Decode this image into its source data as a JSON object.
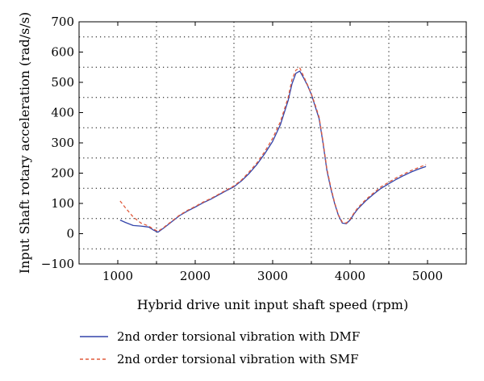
{
  "chart_data": {
    "type": "line",
    "xlabel": "Hybrid drive unit input shaft speed (rpm)",
    "ylabel": "Input Shaft rotary acceleration (rad/s/s)",
    "xlim": [
      500,
      5500
    ],
    "ylim": [
      -100,
      700
    ],
    "xticks": [
      1000,
      2000,
      3000,
      4000,
      5000
    ],
    "yticks": [
      -100,
      0,
      100,
      200,
      300,
      400,
      500,
      600,
      700
    ],
    "grid": true,
    "legend_position": "bottom",
    "series": [
      {
        "name": "2nd order torsional vibration with DMF",
        "color": "#3344aa",
        "style": "solid",
        "x": [
          1030,
          1100,
          1200,
          1300,
          1400,
          1460,
          1520,
          1600,
          1700,
          1800,
          1900,
          2000,
          2100,
          2200,
          2300,
          2400,
          2500,
          2600,
          2700,
          2800,
          2900,
          3000,
          3100,
          3200,
          3250,
          3300,
          3350,
          3400,
          3450,
          3500,
          3550,
          3600,
          3650,
          3700,
          3750,
          3800,
          3850,
          3900,
          3950,
          4000,
          4050,
          4100,
          4200,
          4300,
          4400,
          4500,
          4600,
          4700,
          4800,
          4900,
          4980
        ],
        "y": [
          45,
          37,
          27,
          25,
          22,
          12,
          5,
          20,
          40,
          60,
          75,
          88,
          102,
          114,
          128,
          142,
          155,
          175,
          200,
          230,
          265,
          305,
          360,
          440,
          495,
          530,
          537,
          515,
          490,
          460,
          420,
          380,
          300,
          210,
          150,
          100,
          60,
          35,
          33,
          45,
          65,
          82,
          108,
          130,
          150,
          165,
          180,
          193,
          205,
          215,
          222
        ]
      },
      {
        "name": "2nd order torsional vibration with SMF",
        "color": "#e05a3c",
        "style": "dashed",
        "x": [
          1030,
          1100,
          1200,
          1300,
          1400,
          1460,
          1520,
          1600,
          1700,
          1800,
          1900,
          2000,
          2100,
          2200,
          2300,
          2400,
          2500,
          2600,
          2700,
          2800,
          2900,
          3000,
          3100,
          3200,
          3250,
          3300,
          3350,
          3400,
          3450,
          3500,
          3550,
          3600,
          3650,
          3700,
          3750,
          3800,
          3850,
          3900,
          3950,
          4000,
          4050,
          4100,
          4200,
          4300,
          4400,
          4500,
          4600,
          4700,
          4800,
          4900,
          4980
        ],
        "y": [
          108,
          85,
          55,
          35,
          25,
          15,
          8,
          22,
          42,
          62,
          77,
          90,
          104,
          116,
          130,
          144,
          158,
          178,
          205,
          235,
          272,
          315,
          370,
          450,
          510,
          540,
          548,
          520,
          492,
          462,
          425,
          385,
          305,
          215,
          155,
          103,
          62,
          38,
          35,
          48,
          68,
          86,
          112,
          134,
          155,
          170,
          185,
          198,
          210,
          220,
          228
        ]
      }
    ]
  }
}
